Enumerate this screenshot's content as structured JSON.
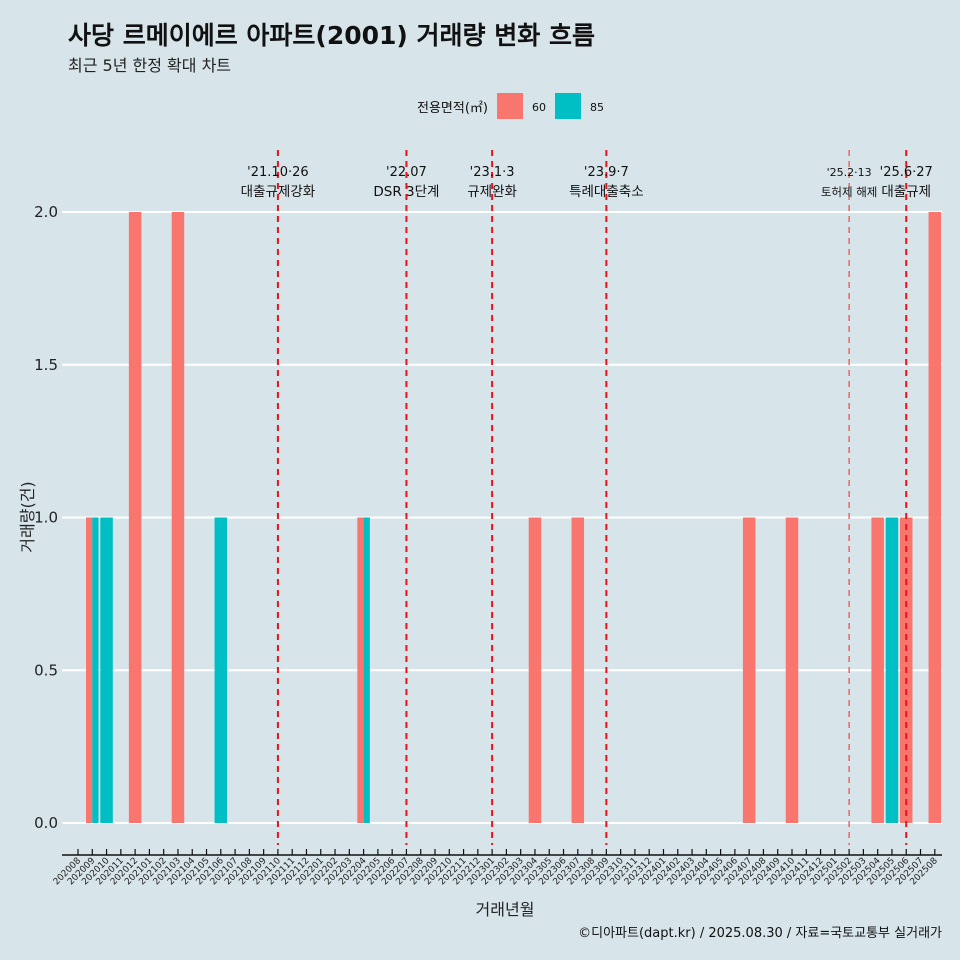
{
  "chart_data": {
    "type": "bar",
    "title": "사당 르메이에르 아파트(2001) 거래량 변화 흐름",
    "subtitle": "최근 5년 한정 확대 차트",
    "xlabel": "거래년월",
    "ylabel": "거래량(건)",
    "ylim": [
      0,
      2
    ],
    "yticks": [
      "0.0",
      "0.5",
      "1.0",
      "1.5",
      "2.0"
    ],
    "legend": {
      "title": "전용면적(㎡)",
      "position": "top"
    },
    "categories": [
      "202008",
      "202009",
      "202010",
      "202011",
      "202012",
      "202101",
      "202102",
      "202103",
      "202104",
      "202105",
      "202106",
      "202107",
      "202108",
      "202109",
      "202110",
      "202111",
      "202112",
      "202201",
      "202202",
      "202203",
      "202204",
      "202205",
      "202206",
      "202207",
      "202208",
      "202209",
      "202210",
      "202211",
      "202212",
      "202301",
      "202302",
      "202303",
      "202304",
      "202305",
      "202306",
      "202307",
      "202308",
      "202309",
      "202310",
      "202311",
      "202312",
      "202401",
      "202402",
      "202403",
      "202404",
      "202405",
      "202406",
      "202407",
      "202408",
      "202409",
      "202410",
      "202411",
      "202412",
      "202501",
      "202502",
      "202503",
      "202504",
      "202505",
      "202506",
      "202507",
      "202508"
    ],
    "series": [
      {
        "name": "60",
        "color": "#f8766d",
        "points": {
          "202009": 1,
          "202012": 2,
          "202103": 2,
          "202204": 1,
          "202304": 1,
          "202307": 1,
          "202407": 1,
          "202410": 1,
          "202504": 1,
          "202506": 1,
          "202508": 2
        }
      },
      {
        "name": "85",
        "color": "#00bfc4",
        "points": {
          "202009": 1,
          "202010": 1,
          "202106": 1,
          "202204": 1,
          "202505": 1
        }
      }
    ],
    "annotations": [
      {
        "month": "202110",
        "date": "'21.10·26",
        "label": "대출규제강화"
      },
      {
        "month": "202207",
        "date": "'22.07",
        "label": "DSR 3단계"
      },
      {
        "month": "202301",
        "date": "'23.1·3",
        "label": "규제완화"
      },
      {
        "month": "202309",
        "date": "'23.9·7",
        "label": "특례대출축소"
      },
      {
        "month": "202502",
        "date": "'25.2·13",
        "label": "토허제 해제",
        "minor": true
      },
      {
        "month": "202506",
        "date": "'25.6·27",
        "label": "대출규제"
      }
    ]
  },
  "caption": "©디아파트(dapt.kr) / 2025.08.30 / 자료=국토교통부 실거래가"
}
